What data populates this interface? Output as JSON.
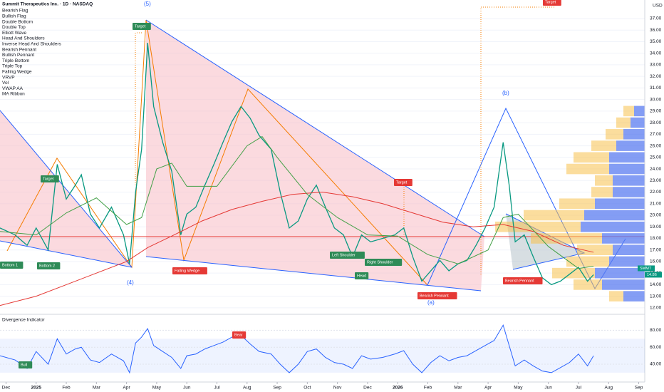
{
  "chart_data": {
    "type": "line",
    "title": "Summit Therapeutics Inc. · 1D · NASDAQ",
    "currency": "USD",
    "indicators": [
      "Bearish Flag",
      "Bullish Flag",
      "Double Bottom",
      "Double Top",
      "Elliott Wave",
      "Head And Shoulders",
      "Inverse Head And Shoulders",
      "Bearish Pennant",
      "Bullish Pennant",
      "Triple Bottom",
      "Triple Top",
      "Falling Wedge",
      "VRVP",
      "Vol",
      "VWAP AA",
      "MA Ribbon"
    ],
    "xlim": [
      -0.2,
      21.2
    ],
    "xticks": [
      {
        "value": 0,
        "label": "Dec"
      },
      {
        "value": 1,
        "label": "2025"
      },
      {
        "value": 2,
        "label": "Feb"
      },
      {
        "value": 3,
        "label": "Mar"
      },
      {
        "value": 4,
        "label": "Apr"
      },
      {
        "value": 5,
        "label": "May"
      },
      {
        "value": 6,
        "label": "Jun"
      },
      {
        "value": 7,
        "label": "Jul"
      },
      {
        "value": 8,
        "label": "Aug"
      },
      {
        "value": 9,
        "label": "Sep"
      },
      {
        "value": 10,
        "label": "Oct"
      },
      {
        "value": 11,
        "label": "Nov"
      },
      {
        "value": 12,
        "label": "Dec"
      },
      {
        "value": 13,
        "label": "2026"
      },
      {
        "value": 14,
        "label": "Feb"
      },
      {
        "value": 15,
        "label": "Mar"
      },
      {
        "value": 16,
        "label": "Apr"
      },
      {
        "value": 17,
        "label": "May"
      },
      {
        "value": 18,
        "label": "Jun"
      },
      {
        "value": 19,
        "label": "Jul"
      },
      {
        "value": 20,
        "label": "Aug"
      },
      {
        "value": 21,
        "label": "Sep"
      }
    ],
    "ylim": [
      11.5,
      38.6
    ],
    "yticks": [
      {
        "value": 12,
        "label": "12.00"
      },
      {
        "value": 13,
        "label": "13.00"
      },
      {
        "value": 14,
        "label": "14.00"
      },
      {
        "value": 15,
        "label": "15.00"
      },
      {
        "value": 16,
        "label": "16.00"
      },
      {
        "value": 17,
        "label": "17.00"
      },
      {
        "value": 18,
        "label": "18.00"
      },
      {
        "value": 19,
        "label": "19.00"
      },
      {
        "value": 20,
        "label": "20.00"
      },
      {
        "value": 21,
        "label": "21.00"
      },
      {
        "value": 22,
        "label": "22.00"
      },
      {
        "value": 23,
        "label": "23.00"
      },
      {
        "value": 24,
        "label": "24.00"
      },
      {
        "value": 25,
        "label": "25.00"
      },
      {
        "value": 26,
        "label": "26.00"
      },
      {
        "value": 27,
        "label": "27.00"
      },
      {
        "value": 28,
        "label": "28.00"
      },
      {
        "value": 29,
        "label": "29.00"
      },
      {
        "value": 30,
        "label": "30.00"
      },
      {
        "value": 31,
        "label": "31.00"
      },
      {
        "value": 32,
        "label": "32.00"
      },
      {
        "value": 33,
        "label": "33.00"
      },
      {
        "value": 34,
        "label": "34.00"
      },
      {
        "value": 35,
        "label": "35.00"
      },
      {
        "value": 36,
        "label": "36.00"
      },
      {
        "value": 37,
        "label": "37.00"
      }
    ],
    "series": [
      {
        "name": "SMMT",
        "color": "#089981",
        "x": [
          -0.2,
          0.3,
          0.7,
          1.0,
          1.4,
          1.7,
          2.0,
          2.3,
          2.5,
          2.8,
          3.1,
          3.5,
          3.9,
          4.1,
          4.3,
          4.5,
          4.7,
          4.9,
          5.2,
          5.5,
          5.8,
          6.0,
          6.3,
          6.6,
          6.9,
          7.2,
          7.5,
          7.8,
          8.1,
          8.4,
          8.8,
          9.1,
          9.4,
          9.7,
          10.0,
          10.3,
          10.6,
          10.9,
          11.2,
          11.5,
          11.8,
          12.1,
          12.5,
          12.9,
          13.2,
          13.5,
          13.8,
          14.1,
          14.4,
          14.7,
          15.0,
          15.3,
          15.6,
          15.9,
          16.2,
          16.5,
          16.7,
          16.9,
          17.2,
          17.5,
          17.8,
          18.1,
          18.4,
          18.7,
          19.0,
          19.3,
          19.5
        ],
        "values": [
          18.9,
          18.3,
          17.4,
          18.9,
          17.0,
          24.4,
          21.4,
          22.6,
          23.5,
          20.1,
          18.9,
          20.7,
          18.3,
          15.8,
          22.0,
          25.7,
          34.9,
          29.4,
          26.3,
          23.8,
          18.3,
          20.1,
          20.7,
          22.6,
          24.4,
          26.3,
          28.1,
          29.4,
          28.4,
          26.9,
          25.7,
          22.0,
          18.9,
          19.5,
          21.4,
          22.6,
          20.7,
          18.9,
          18.3,
          16.4,
          18.3,
          17.7,
          18.0,
          18.3,
          18.9,
          16.4,
          14.3,
          15.2,
          16.1,
          15.2,
          15.8,
          16.1,
          17.4,
          18.9,
          20.7,
          26.3,
          22.6,
          17.7,
          18.3,
          16.4,
          14.6,
          14.0,
          14.3,
          14.9,
          15.5,
          14.3,
          14.86
        ]
      },
      {
        "name": "MA Ribbon",
        "color": "#e53935",
        "x": [
          -0.2,
          1,
          2,
          3,
          4,
          4.7,
          5.5,
          6.5,
          7.5,
          8.5,
          9.5,
          10.5,
          11.5,
          12.5,
          13.5,
          14.5,
          15.5,
          16.5,
          17.5,
          18.5,
          19.5
        ],
        "values": [
          12.2,
          13.0,
          14.0,
          15.0,
          16.0,
          17.2,
          18.2,
          19.5,
          20.5,
          21.2,
          21.8,
          22.0,
          21.6,
          21.0,
          20.2,
          19.4,
          19.0,
          19.2,
          18.6,
          17.4,
          16.8
        ]
      },
      {
        "name": "MA Ribbon",
        "color": "#43a047",
        "x": [
          -0.2,
          1,
          2,
          3,
          4,
          4.5,
          5,
          5.5,
          6,
          7,
          8,
          8.5,
          9,
          10,
          11,
          12,
          13,
          14,
          15,
          16,
          16.5,
          17,
          18,
          19,
          19.5
        ],
        "values": [
          18.6,
          18.3,
          20.2,
          21.5,
          19.2,
          19.8,
          24.0,
          24.5,
          22.5,
          22.5,
          26.0,
          26.8,
          25.0,
          21.8,
          19.8,
          18.3,
          18.2,
          16.6,
          15.8,
          17.0,
          19.8,
          20.1,
          17.3,
          15.4,
          15.6
        ]
      }
    ],
    "volume_profile": {
      "levels": [
        13,
        14,
        15,
        16,
        17,
        18,
        19,
        20,
        21,
        22,
        23,
        24,
        25,
        26,
        27,
        28,
        29
      ],
      "up_color": "#5b7cf0",
      "down_color": "#f7c14d",
      "up": [
        30,
        60,
        70,
        50,
        45,
        60,
        90,
        85,
        70,
        45,
        45,
        50,
        50,
        40,
        30,
        20,
        15
      ],
      "down": [
        20,
        40,
        60,
        60,
        50,
        100,
        120,
        85,
        50,
        30,
        25,
        60,
        50,
        35,
        25,
        20,
        15
      ]
    },
    "annotations": [
      {
        "text": "Target",
        "color": "#2e8b57"
      },
      {
        "text": "(5)",
        "color": "#2962ff"
      },
      {
        "text": "(4)",
        "color": "#2962ff"
      },
      {
        "text": "Target",
        "color": "#2e8b57"
      },
      {
        "text": "Bottom 1",
        "color": "#2e8b57"
      },
      {
        "text": "Bottom 2",
        "color": "#2e8b57"
      },
      {
        "text": "Falling Wedge",
        "color": "#e53935"
      },
      {
        "text": "Left Shoulder",
        "color": "#2e8b57"
      },
      {
        "text": "Head",
        "color": "#2e8b57"
      },
      {
        "text": "Right Shoulder",
        "color": "#2e8b57"
      },
      {
        "text": "Target",
        "color": "#e53935"
      },
      {
        "text": "Bearish Pennant",
        "color": "#e53935"
      },
      {
        "text": "(a)",
        "color": "#2962ff"
      },
      {
        "text": "(b)",
        "color": "#2962ff"
      },
      {
        "text": "Bearish Pennant",
        "color": "#e53935"
      },
      {
        "text": "Target",
        "color": "#e53935"
      },
      {
        "text": "Bear",
        "color": "#e53935"
      },
      {
        "text": "Bull",
        "color": "#2e8b57"
      }
    ],
    "oscillator": {
      "title": "Divergence Indicator",
      "color": "#2962ff",
      "ylim": [
        19,
        98
      ],
      "yticks": [
        {
          "value": 40,
          "label": "40.00"
        },
        {
          "value": 60,
          "label": "60.00"
        },
        {
          "value": 80,
          "label": "80.00"
        }
      ],
      "band": [
        30,
        70
      ],
      "values": [
        50,
        45,
        35,
        55,
        40,
        70,
        52,
        58,
        60,
        45,
        42,
        52,
        44,
        30,
        65,
        72,
        82,
        62,
        55,
        48,
        35,
        50,
        52,
        58,
        62,
        66,
        72,
        74,
        64,
        55,
        52,
        40,
        30,
        40,
        55,
        58,
        48,
        42,
        40,
        35,
        50,
        46,
        48,
        52,
        56,
        40,
        30,
        42,
        50,
        44,
        48,
        50,
        56,
        62,
        68,
        86,
        62,
        38,
        45,
        38,
        32,
        30,
        36,
        42,
        52,
        38,
        50
      ]
    }
  }
}
